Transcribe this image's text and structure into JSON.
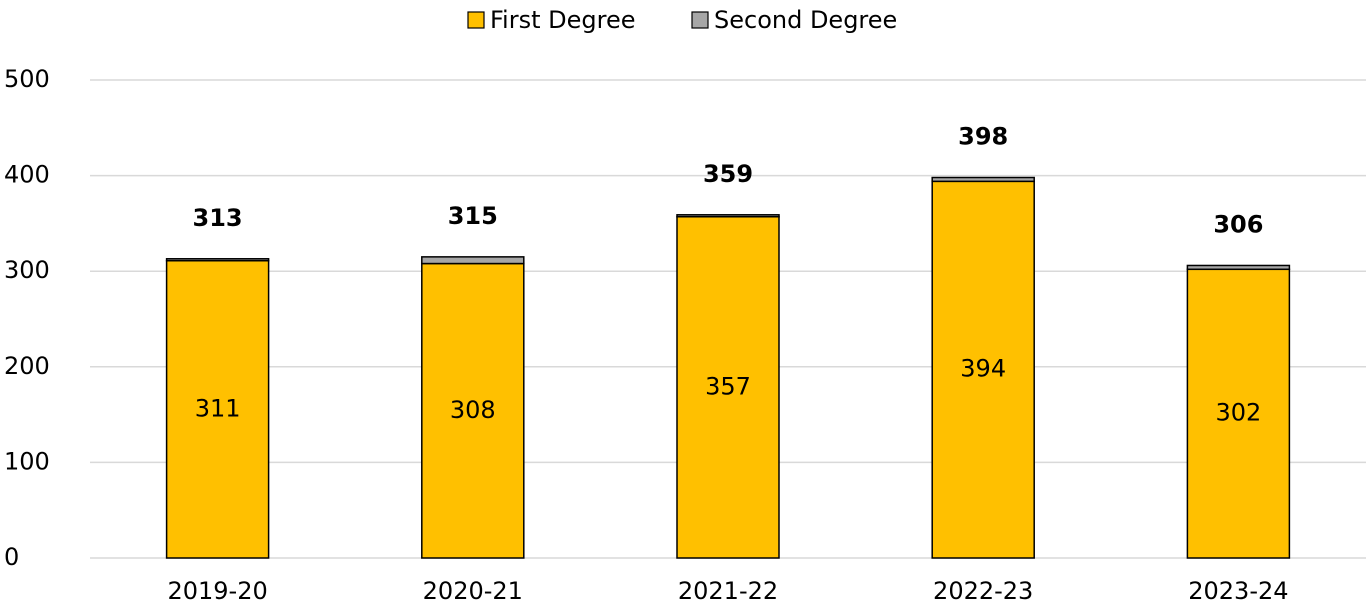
{
  "chart_data": {
    "type": "stacked-bar",
    "categories": [
      "2019-20",
      "2020-21",
      "2021-22",
      "2022-23",
      "2023-24"
    ],
    "series": [
      {
        "name": "First Degree",
        "color": "#FFC000",
        "values": [
          311,
          308,
          357,
          394,
          302
        ]
      },
      {
        "name": "Second Degree",
        "color": "#A6A6A6",
        "values": [
          2,
          7,
          2,
          4,
          4
        ]
      }
    ],
    "totals": [
      313,
      315,
      359,
      398,
      306
    ],
    "ylim": [
      0,
      500
    ],
    "yticks": [
      0,
      100,
      200,
      300,
      400,
      500
    ],
    "grid": true,
    "legend": "top"
  }
}
